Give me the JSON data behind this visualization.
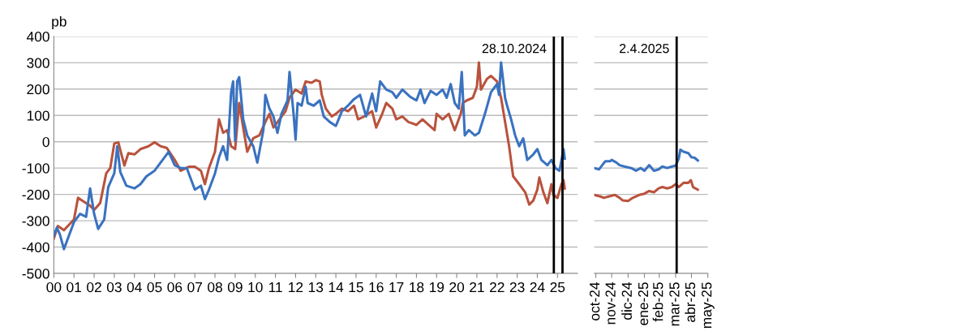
{
  "chart_data": [
    {
      "type": "line",
      "ylabel": "pb",
      "xlim": [
        2000,
        2026
      ],
      "ylim": [
        -500,
        400
      ],
      "yticks": [
        -500,
        -400,
        -300,
        -200,
        -100,
        0,
        100,
        200,
        300,
        400
      ],
      "xticks": [
        {
          "value": 2000,
          "label": "00"
        },
        {
          "value": 2001,
          "label": "01"
        },
        {
          "value": 2002,
          "label": "02"
        },
        {
          "value": 2003,
          "label": "03"
        },
        {
          "value": 2004,
          "label": "04"
        },
        {
          "value": 2005,
          "label": "05"
        },
        {
          "value": 2006,
          "label": "06"
        },
        {
          "value": 2007,
          "label": "07"
        },
        {
          "value": 2008,
          "label": "08"
        },
        {
          "value": 2009,
          "label": "09"
        },
        {
          "value": 2010,
          "label": "10"
        },
        {
          "value": 2011,
          "label": "11"
        },
        {
          "value": 2012,
          "label": "12"
        },
        {
          "value": 2013,
          "label": "13"
        },
        {
          "value": 2014,
          "label": "14"
        },
        {
          "value": 2015,
          "label": "15"
        },
        {
          "value": 2016,
          "label": "16"
        },
        {
          "value": 2017,
          "label": "17"
        },
        {
          "value": 2018,
          "label": "18"
        },
        {
          "value": 2019,
          "label": "19"
        },
        {
          "value": 2020,
          "label": "20"
        },
        {
          "value": 2021,
          "label": "21"
        },
        {
          "value": 2022,
          "label": "22"
        },
        {
          "value": 2023,
          "label": "23"
        },
        {
          "value": 2024,
          "label": "24"
        },
        {
          "value": 2025,
          "label": "25"
        }
      ],
      "grid": "y",
      "line_style": "solid",
      "marker": "none",
      "ref_lines": [
        {
          "axis": "x",
          "value": 2024.82,
          "label": "28.10.2024",
          "color": "#000000"
        },
        {
          "axis": "x",
          "value": 2025.25,
          "label": null,
          "color": "#000000"
        }
      ],
      "series": [
        {
          "color": "#b9533d",
          "x": [
            2000.0,
            2000.2,
            2000.5,
            2001.0,
            2001.2,
            2001.5,
            2001.8,
            2002.0,
            2002.3,
            2002.6,
            2002.8,
            2003.0,
            2003.2,
            2003.5,
            2003.7,
            2004.0,
            2004.3,
            2004.7,
            2005.0,
            2005.3,
            2005.6,
            2006.0,
            2006.3,
            2006.7,
            2007.0,
            2007.3,
            2007.5,
            2007.7,
            2008.0,
            2008.2,
            2008.4,
            2008.6,
            2008.8,
            2009.0,
            2009.2,
            2009.4,
            2009.6,
            2009.9,
            2010.2,
            2010.5,
            2010.7,
            2010.9,
            2011.2,
            2011.5,
            2011.7,
            2012.0,
            2012.3,
            2012.5,
            2012.8,
            2013.0,
            2013.2,
            2013.3,
            2013.5,
            2013.8,
            2014.0,
            2014.3,
            2014.6,
            2014.9,
            2015.1,
            2015.4,
            2015.8,
            2016.0,
            2016.3,
            2016.5,
            2016.8,
            2017.0,
            2017.3,
            2017.6,
            2018.0,
            2018.3,
            2018.6,
            2018.9,
            2019.0,
            2019.3,
            2019.6,
            2019.9,
            2020.2,
            2020.3,
            2020.5,
            2020.8,
            2021.0,
            2021.1,
            2021.2,
            2021.5,
            2021.7,
            2022.0,
            2022.2,
            2022.4,
            2022.6,
            2022.8,
            2023.1,
            2023.4,
            2023.6,
            2023.8,
            2024.0,
            2024.1,
            2024.3,
            2024.5,
            2024.7,
            2024.8,
            2025.0,
            2025.2,
            2025.3,
            2025.36
          ],
          "values": [
            -367,
            -320,
            -336,
            -295,
            -213,
            -228,
            -243,
            -259,
            -233,
            -120,
            -100,
            -7,
            -2,
            -90,
            -43,
            -48,
            -28,
            -17,
            -2,
            -17,
            -23,
            -69,
            -110,
            -95,
            -95,
            -110,
            -161,
            -100,
            -38,
            85,
            34,
            44,
            -17,
            -28,
            147,
            54,
            -38,
            13,
            24,
            75,
            106,
            54,
            85,
            116,
            167,
            198,
            183,
            229,
            224,
            234,
            229,
            178,
            126,
            96,
            106,
            126,
            116,
            137,
            85,
            96,
            116,
            54,
            106,
            147,
            126,
            85,
            96,
            75,
            64,
            85,
            64,
            44,
            106,
            85,
            106,
            44,
            106,
            147,
            157,
            167,
            209,
            301,
            198,
            239,
            250,
            229,
            167,
            75,
            -17,
            -131,
            -161,
            -192,
            -239,
            -223,
            -182,
            -136,
            -192,
            -233,
            -161,
            -203,
            -213,
            -161,
            -146,
            -177
          ]
        },
        {
          "color": "#3a72c0",
          "x": [
            2000.0,
            2000.15,
            2000.3,
            2000.5,
            2000.7,
            2001.0,
            2001.3,
            2001.6,
            2001.8,
            2002.0,
            2002.2,
            2002.5,
            2002.7,
            2003.0,
            2003.15,
            2003.3,
            2003.6,
            2004.0,
            2004.3,
            2004.6,
            2005.0,
            2005.4,
            2005.7,
            2006.0,
            2006.3,
            2006.6,
            2007.0,
            2007.3,
            2007.5,
            2007.7,
            2008.0,
            2008.2,
            2008.4,
            2008.6,
            2008.8,
            2008.9,
            2009.0,
            2009.1,
            2009.2,
            2009.4,
            2009.6,
            2009.9,
            2010.1,
            2010.4,
            2010.5,
            2010.7,
            2010.9,
            2011.1,
            2011.3,
            2011.6,
            2011.7,
            2011.9,
            2012.0,
            2012.1,
            2012.3,
            2012.5,
            2012.6,
            2012.9,
            2013.2,
            2013.4,
            2013.7,
            2014.0,
            2014.3,
            2014.6,
            2014.9,
            2015.2,
            2015.5,
            2015.8,
            2016.0,
            2016.2,
            2016.5,
            2016.8,
            2017.0,
            2017.3,
            2017.7,
            2018.0,
            2018.2,
            2018.4,
            2018.7,
            2019.0,
            2019.3,
            2019.5,
            2019.7,
            2019.9,
            2020.1,
            2020.25,
            2020.4,
            2020.6,
            2020.9,
            2021.1,
            2021.4,
            2021.7,
            2022.0,
            2022.1,
            2022.2,
            2022.4,
            2022.5,
            2022.7,
            2022.9,
            2023.1,
            2023.3,
            2023.5,
            2023.8,
            2024.0,
            2024.2,
            2024.5,
            2024.7,
            2024.9,
            2025.1,
            2025.3,
            2025.36
          ],
          "values": [
            -357,
            -326,
            -352,
            -408,
            -367,
            -305,
            -274,
            -285,
            -177,
            -274,
            -331,
            -295,
            -172,
            -120,
            -17,
            -115,
            -167,
            -177,
            -161,
            -131,
            -110,
            -69,
            -38,
            -89,
            -100,
            -100,
            -182,
            -167,
            -218,
            -182,
            -120,
            -59,
            -17,
            -69,
            188,
            229,
            3,
            229,
            245,
            85,
            24,
            -17,
            -79,
            44,
            178,
            126,
            96,
            34,
            106,
            157,
            265,
            106,
            8,
            147,
            137,
            209,
            147,
            137,
            157,
            96,
            75,
            60,
            116,
            137,
            162,
            178,
            96,
            183,
            116,
            229,
            198,
            188,
            167,
            198,
            170,
            157,
            198,
            147,
            193,
            178,
            198,
            167,
            219,
            147,
            126,
            265,
            24,
            44,
            24,
            34,
            106,
            188,
            219,
            178,
            301,
            167,
            137,
            85,
            24,
            -17,
            13,
            -69,
            -48,
            -28,
            -69,
            -89,
            -69,
            -100,
            -110,
            -28,
            -64
          ]
        }
      ]
    },
    {
      "type": "line",
      "xlim": [
        "2024-10-28",
        "2025-05-31"
      ],
      "ylim": [
        -500,
        400
      ],
      "yticks": [
        -500,
        -400,
        -300,
        -200,
        -100,
        0,
        100,
        200,
        300,
        400
      ],
      "xticks": [
        {
          "value": "2024-10-31",
          "label": "oct-24"
        },
        {
          "value": "2024-11-30",
          "label": "nov-24"
        },
        {
          "value": "2024-12-31",
          "label": "dic-24"
        },
        {
          "value": "2025-01-31",
          "label": "ene-25"
        },
        {
          "value": "2025-02-28",
          "label": "feb-25"
        },
        {
          "value": "2025-03-31",
          "label": "mar-25"
        },
        {
          "value": "2025-04-30",
          "label": "abr-25"
        },
        {
          "value": "2025-05-31",
          "label": "may-25"
        }
      ],
      "tick_labels": "x",
      "grid": "y",
      "line_style": "solid",
      "marker": "none",
      "ref_lines": [
        {
          "axis": "x",
          "value": "2025-04-02",
          "label": "2.4.2025",
          "color": "#000000"
        }
      ],
      "series": [
        {
          "color": "#b9533d",
          "x": [
            "2024-10-28",
            "2024-11-09",
            "2024-11-15",
            "2024-11-24",
            "2024-12-06",
            "2024-12-15",
            "2024-12-21",
            "2024-12-31",
            "2025-01-09",
            "2025-01-21",
            "2025-01-31",
            "2025-02-09",
            "2025-02-18",
            "2025-02-27",
            "2025-03-06",
            "2025-03-15",
            "2025-03-24",
            "2025-03-31",
            "2025-04-06",
            "2025-04-15",
            "2025-04-24",
            "2025-04-29",
            "2025-05-03",
            "2025-05-12"
          ],
          "values": [
            -202,
            -208,
            -213,
            -208,
            -202,
            -213,
            -223,
            -225,
            -213,
            -202,
            -197,
            -187,
            -192,
            -177,
            -172,
            -177,
            -172,
            -161,
            -172,
            -156,
            -156,
            -146,
            -172,
            -182
          ]
        },
        {
          "color": "#3a72c0",
          "x": [
            "2024-10-28",
            "2024-11-06",
            "2024-11-12",
            "2024-11-18",
            "2024-11-27",
            "2024-11-30",
            "2024-12-09",
            "2024-12-15",
            "2024-12-24",
            "2025-01-06",
            "2025-01-15",
            "2025-01-24",
            "2025-01-31",
            "2025-02-09",
            "2025-02-18",
            "2025-02-27",
            "2025-03-06",
            "2025-03-15",
            "2025-03-24",
            "2025-03-31",
            "2025-04-06",
            "2025-04-09",
            "2025-04-15",
            "2025-04-24",
            "2025-04-30",
            "2025-05-06",
            "2025-05-12"
          ],
          "values": [
            -100,
            -105,
            -89,
            -74,
            -74,
            -69,
            -79,
            -89,
            -94,
            -100,
            -110,
            -100,
            -110,
            -89,
            -110,
            -105,
            -94,
            -100,
            -94,
            -91,
            -64,
            -30,
            -38,
            -43,
            -59,
            -61,
            -71
          ]
        }
      ]
    }
  ]
}
